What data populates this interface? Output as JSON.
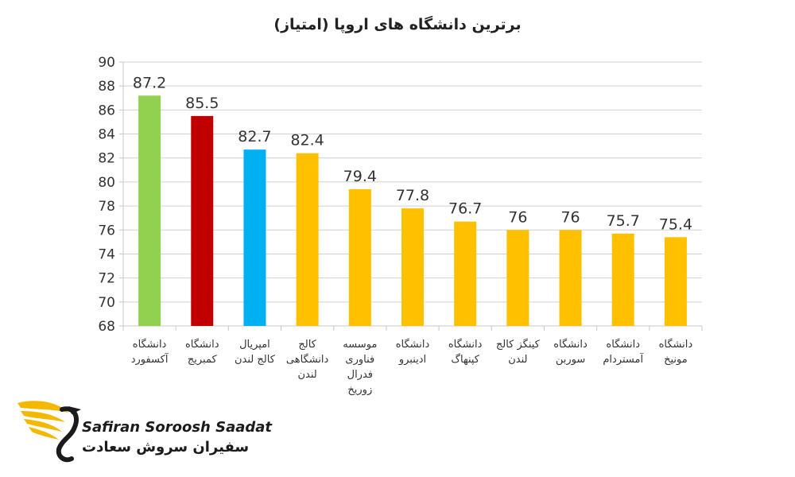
{
  "chart_data": {
    "type": "bar",
    "title": "برترین دانشگاه های اروپا (امتیاز)",
    "xlabel": "",
    "ylabel": "",
    "ylim": [
      68,
      90
    ],
    "yticks": [
      68,
      70,
      72,
      74,
      76,
      78,
      80,
      82,
      84,
      86,
      88,
      90
    ],
    "grid": true,
    "categories": [
      [
        "دانشگاه",
        "آکسفورد"
      ],
      [
        "دانشگاه",
        "کمبریج"
      ],
      [
        "امپریال",
        "کالج لندن"
      ],
      [
        "کالج",
        "دانشگاهی",
        "لندن"
      ],
      [
        "موسسه",
        "فناوری",
        "فدرال",
        "زوریخ"
      ],
      [
        "دانشگاه",
        "ادینبرو"
      ],
      [
        "دانشگاه",
        "کپنهاگ"
      ],
      [
        "کینگز کالج",
        "لندن"
      ],
      [
        "دانشگاه",
        "سوربن"
      ],
      [
        "دانشگاه",
        "آمستردام"
      ],
      [
        "دانشگاه",
        "مونیخ"
      ]
    ],
    "values": [
      87.2,
      85.5,
      82.7,
      82.4,
      79.4,
      77.8,
      76.7,
      76,
      76,
      75.7,
      75.4
    ],
    "value_labels": [
      "87.2",
      "85.5",
      "82.7",
      "82.4",
      "79.4",
      "77.8",
      "76.7",
      "76",
      "76",
      "75.7",
      "75.4"
    ],
    "colors": [
      "#92d050",
      "#c00000",
      "#00b0f0",
      "#ffc000",
      "#ffc000",
      "#ffc000",
      "#ffc000",
      "#ffc000",
      "#ffc000",
      "#ffc000",
      "#ffc000"
    ]
  },
  "logo": {
    "name_en": "Safiran Soroosh Saadat",
    "name_fa": "سفیران سروش سعادت"
  },
  "colors": {
    "axis": "#c8c8c8",
    "grid": "#d0d0d0",
    "logo_gold": "#f5b800",
    "logo_dark": "#1b1b1b"
  }
}
